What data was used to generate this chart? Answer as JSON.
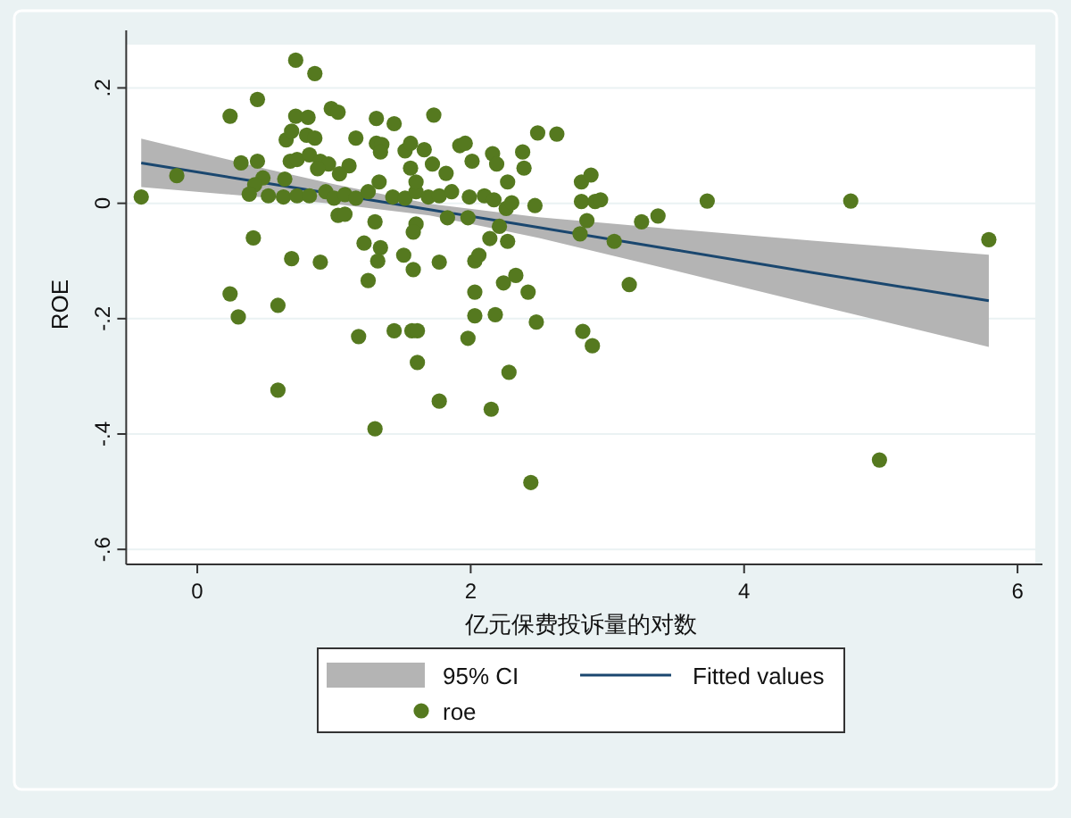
{
  "chart_data": {
    "type": "scatter",
    "xlabel": "亿元保费投诉量的对数",
    "ylabel": "ROE",
    "xlim": [
      -0.52,
      6.13
    ],
    "ylim": [
      -0.626,
      0.275
    ],
    "xticks": [
      0,
      2,
      4,
      6
    ],
    "yticks": [
      {
        "value": 0.2,
        "label": ".2"
      },
      {
        "value": 0,
        "label": "0"
      },
      {
        "value": -0.2,
        "label": "-.2"
      },
      {
        "value": -0.4,
        "label": "-.4"
      },
      {
        "value": -0.6,
        "label": "-.6"
      }
    ],
    "grid": "y",
    "legend": "bottom",
    "annotations": [
      "95% CI"
    ],
    "series": [
      {
        "name": "Fitted values",
        "type": "line",
        "marker": "none",
        "color": "#1a476f",
        "x": [
          -0.41,
          0.5,
          1.0,
          1.7,
          2.5,
          3.5,
          4.5,
          5.79
        ],
        "values": [
          0.07,
          0.035,
          0.016,
          -0.011,
          -0.042,
          -0.081,
          -0.12,
          -0.169
        ],
        "lower": [
          0.028,
          0.01,
          -0.001,
          -0.021,
          -0.06,
          -0.117,
          -0.175,
          -0.249
        ],
        "upper": [
          0.112,
          0.06,
          0.033,
          -0.001,
          -0.024,
          -0.045,
          -0.065,
          -0.089
        ]
      },
      {
        "name": "roe",
        "marker": "circle",
        "color": "#55791f",
        "x": [
          -0.41,
          -0.15,
          0.72,
          0.86,
          0.24,
          0.44,
          0.32,
          0.44,
          0.98,
          1.03,
          0.72,
          0.81,
          1.31,
          1.44,
          1.73,
          1.16,
          0.65,
          0.69,
          0.8,
          0.86,
          1.31,
          1.35,
          1.34,
          1.52,
          1.56,
          1.66,
          1.92,
          0.68,
          0.73,
          0.82,
          0.9,
          0.96,
          0.88,
          1.11,
          1.04,
          0.64,
          0.48,
          0.42,
          0.38,
          0.52,
          0.63,
          0.73,
          0.82,
          0.94,
          1.0,
          1.08,
          1.16,
          1.25,
          1.33,
          1.43,
          1.52,
          1.6,
          1.69,
          1.77,
          1.86,
          1.56,
          1.6,
          1.72,
          1.82,
          1.03,
          1.08,
          1.3,
          1.6,
          1.58,
          1.83,
          0.41,
          1.22,
          1.34,
          1.32,
          0.69,
          0.9,
          1.51,
          1.58,
          1.77,
          1.25,
          0.24,
          0.3,
          0.59,
          1.18,
          1.44,
          1.57,
          1.61,
          1.61,
          1.77,
          0.59,
          1.3,
          1.96,
          2.01,
          1.99,
          2.16,
          2.19,
          2.27,
          2.38,
          2.39,
          2.49,
          2.63,
          2.1,
          2.17,
          2.26,
          2.3,
          2.47,
          2.21,
          2.14,
          2.27,
          1.98,
          2.03,
          2.06,
          2.24,
          2.33,
          2.42,
          2.03,
          2.03,
          2.18,
          2.48,
          1.98,
          2.28,
          2.15,
          2.44,
          2.81,
          2.88,
          2.81,
          2.91,
          2.95,
          2.85,
          2.8,
          3.05,
          3.25,
          3.37,
          3.16,
          2.82,
          2.89,
          3.73,
          4.78,
          5.79,
          4.99
        ],
        "values": [
          0.011,
          0.048,
          0.248,
          0.225,
          0.151,
          0.18,
          0.07,
          0.073,
          0.164,
          0.158,
          0.151,
          0.149,
          0.147,
          0.138,
          0.153,
          0.113,
          0.11,
          0.125,
          0.118,
          0.113,
          0.104,
          0.102,
          0.089,
          0.091,
          0.104,
          0.093,
          0.1,
          0.073,
          0.076,
          0.084,
          0.073,
          0.068,
          0.06,
          0.065,
          0.051,
          0.042,
          0.044,
          0.032,
          0.016,
          0.013,
          0.011,
          0.013,
          0.013,
          0.02,
          0.009,
          0.015,
          0.009,
          0.02,
          0.037,
          0.011,
          0.009,
          0.02,
          0.011,
          0.013,
          0.02,
          0.061,
          0.037,
          0.068,
          0.052,
          -0.021,
          -0.019,
          -0.032,
          -0.036,
          -0.05,
          -0.025,
          -0.06,
          -0.069,
          -0.077,
          -0.1,
          -0.096,
          -0.102,
          -0.09,
          -0.115,
          -0.102,
          -0.134,
          -0.157,
          -0.197,
          -0.177,
          -0.231,
          -0.221,
          -0.221,
          -0.221,
          -0.276,
          -0.343,
          -0.324,
          -0.391,
          0.104,
          0.073,
          0.011,
          0.086,
          0.068,
          0.037,
          0.089,
          0.061,
          0.122,
          0.12,
          0.013,
          0.006,
          -0.009,
          0.001,
          -0.004,
          -0.04,
          -0.061,
          -0.066,
          -0.025,
          -0.1,
          -0.09,
          -0.138,
          -0.125,
          -0.154,
          -0.154,
          -0.195,
          -0.193,
          -0.206,
          -0.234,
          -0.293,
          -0.357,
          -0.484,
          0.037,
          0.049,
          0.003,
          0.003,
          0.006,
          -0.03,
          -0.053,
          -0.066,
          -0.032,
          -0.022,
          -0.141,
          -0.222,
          -0.247,
          0.004,
          0.004,
          -0.063,
          -0.445
        ]
      }
    ]
  }
}
